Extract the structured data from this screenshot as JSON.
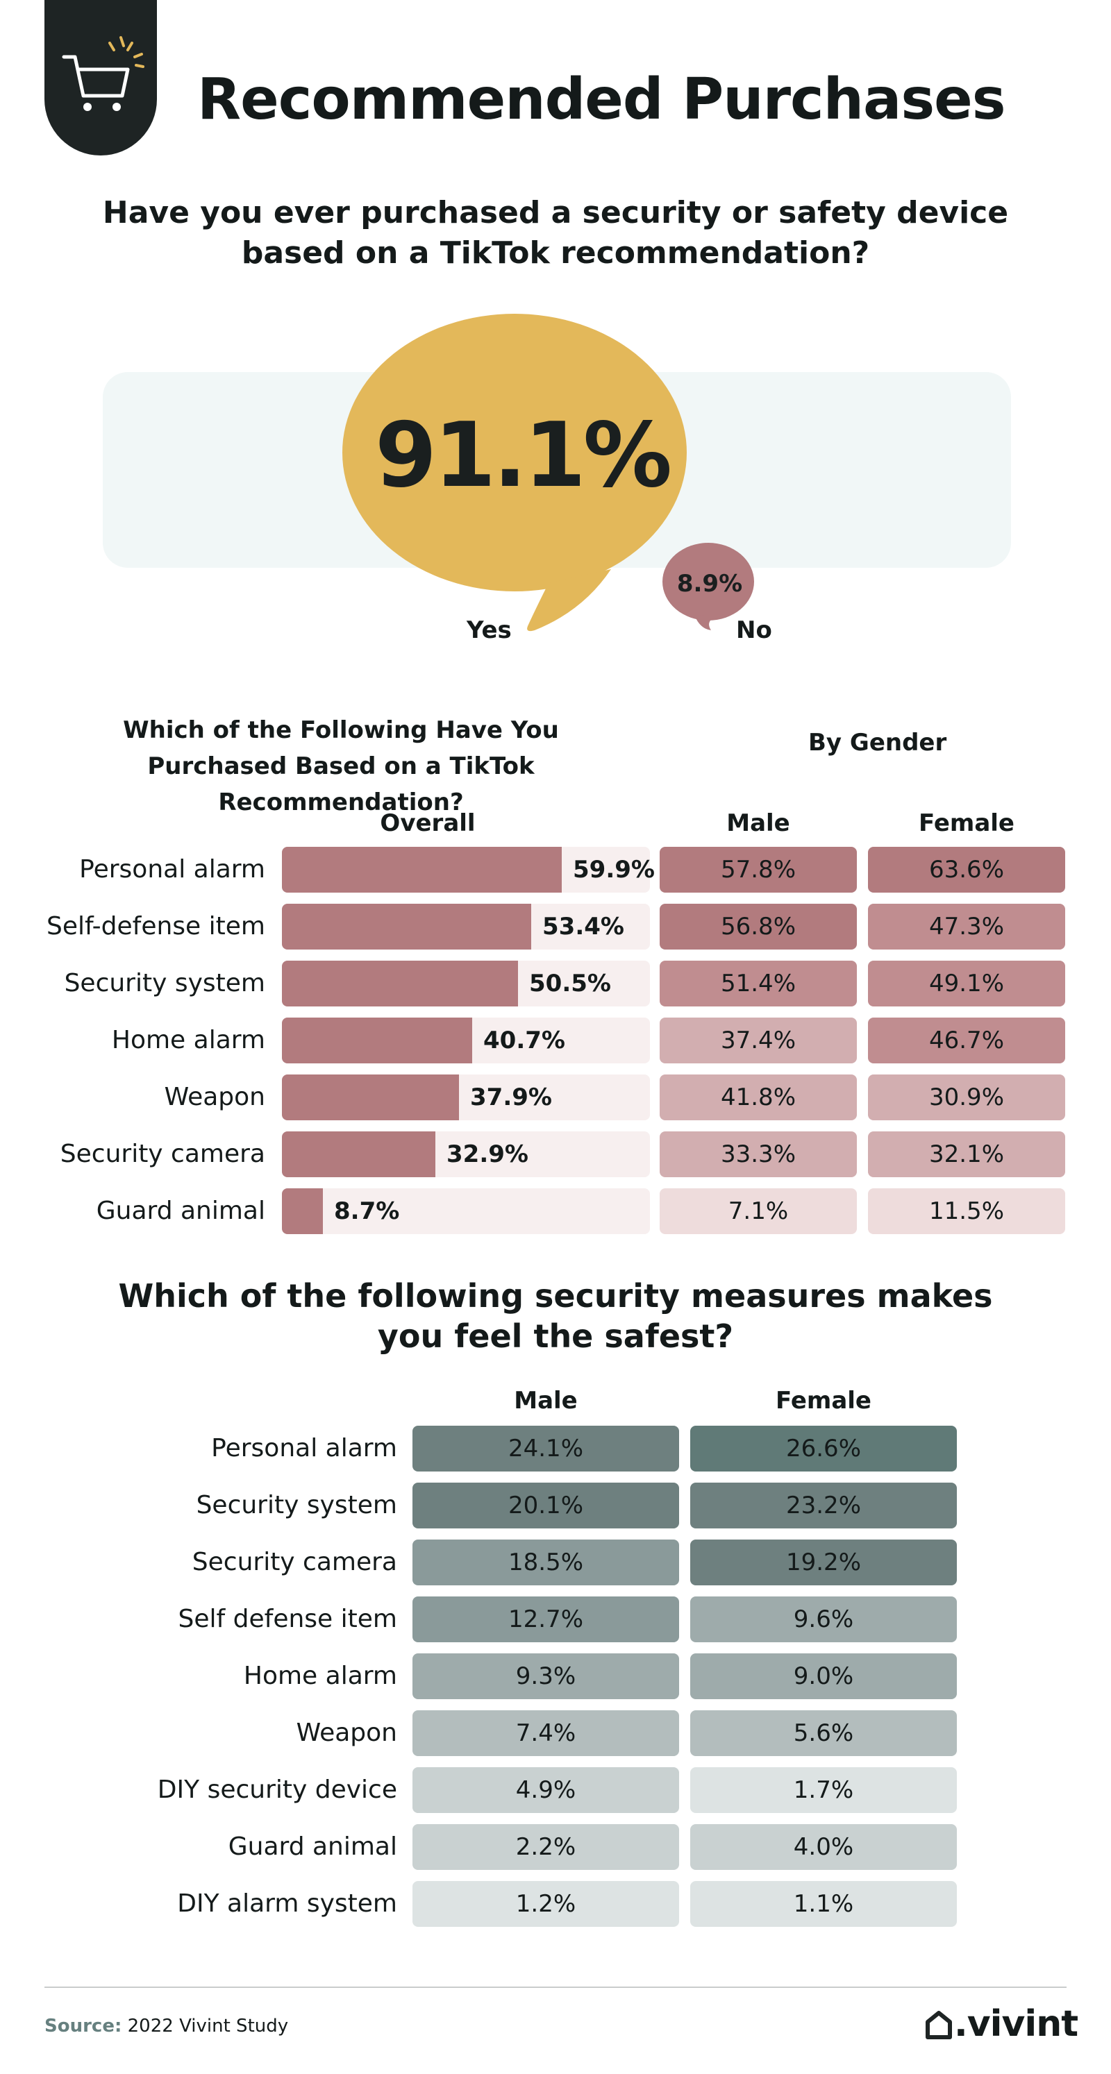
{
  "header": {
    "title": "Recommended Purchases",
    "badge_icon": "shopping-cart-icon"
  },
  "question1": {
    "text": "Have you ever purchased a security or safety device based on a TikTok recommendation?",
    "yes_value": "91.1%",
    "yes_label": "Yes",
    "no_value": "8.9%",
    "no_label": "No"
  },
  "purchased": {
    "title": "Which of the Following Have You Purchased Based on a TikTok Recommendation?",
    "by_gender": "By Gender",
    "overall_header": "Overall",
    "male_header": "Male",
    "female_header": "Female"
  },
  "safest": {
    "title": "Which of the following security measures makes you feel the safest?",
    "male_header": "Male",
    "female_header": "Female"
  },
  "chart_data": [
    {
      "type": "bar",
      "categories": [
        "Yes",
        "No"
      ],
      "values": [
        91.1,
        8.9
      ]
    },
    {
      "type": "bar",
      "title": "Which of the Following Have You Purchased Based on a TikTok Recommendation?",
      "categories": [
        "Personal alarm",
        "Self-defense item",
        "Security system",
        "Home alarm",
        "Weapon",
        "Security camera",
        "Guard animal"
      ],
      "series": [
        {
          "name": "Overall",
          "values": [
            59.9,
            53.4,
            50.5,
            40.7,
            37.9,
            32.9,
            8.7
          ],
          "labels": [
            "59.9%",
            "53.4%",
            "50.5%",
            "40.7%",
            "37.9%",
            "32.9%",
            "8.7%"
          ]
        },
        {
          "name": "Male",
          "values": [
            57.8,
            56.8,
            51.4,
            37.4,
            41.8,
            33.3,
            7.1
          ],
          "labels": [
            "57.8%",
            "56.8%",
            "51.4%",
            "37.4%",
            "41.8%",
            "33.3%",
            "7.1%"
          ]
        },
        {
          "name": "Female",
          "values": [
            63.6,
            47.3,
            49.1,
            46.7,
            30.9,
            32.1,
            11.5
          ],
          "labels": [
            "63.6%",
            "47.3%",
            "49.1%",
            "46.7%",
            "30.9%",
            "32.1%",
            "11.5%"
          ]
        }
      ],
      "ylim": [
        0,
        100
      ]
    },
    {
      "type": "heatmap",
      "title": "Which of the following security measures makes you feel the safest?",
      "categories": [
        "Personal alarm",
        "Security system",
        "Security camera",
        "Self defense item",
        "Home alarm",
        "Weapon",
        "DIY security device",
        "Guard animal",
        "DIY alarm system"
      ],
      "series": [
        {
          "name": "Male",
          "values": [
            24.1,
            20.1,
            18.5,
            12.7,
            9.3,
            7.4,
            4.9,
            2.2,
            1.2
          ],
          "labels": [
            "24.1%",
            "20.1%",
            "18.5%",
            "12.7%",
            "9.3%",
            "7.4%",
            "4.9%",
            "2.2%",
            "1.2%"
          ]
        },
        {
          "name": "Female",
          "values": [
            26.6,
            23.2,
            19.2,
            9.6,
            9.0,
            5.6,
            1.7,
            4.0,
            1.1
          ],
          "labels": [
            "26.6%",
            "23.2%",
            "19.2%",
            "9.6%",
            "9.0%",
            "5.6%",
            "1.7%",
            "4.0%",
            "1.1%"
          ]
        }
      ]
    }
  ],
  "colors": {
    "yes_bubble": "#e3b85a",
    "no_bubble": "#b27b7e",
    "bar": "#b27b7e",
    "rose_scale": [
      "#eedcdc",
      "#d2aeb0",
      "#c08d90",
      "#b27b7e"
    ],
    "slate_scale": [
      "#dde3e3",
      "#c9d1d1",
      "#b3bdbd",
      "#9eabab",
      "#8a9a9a",
      "#6e807f",
      "#607a77"
    ]
  },
  "footer": {
    "source_label": "Source:",
    "source_text": "2022 Vivint Study",
    "logo": ".vivint",
    "logo_icon": "house-icon"
  }
}
